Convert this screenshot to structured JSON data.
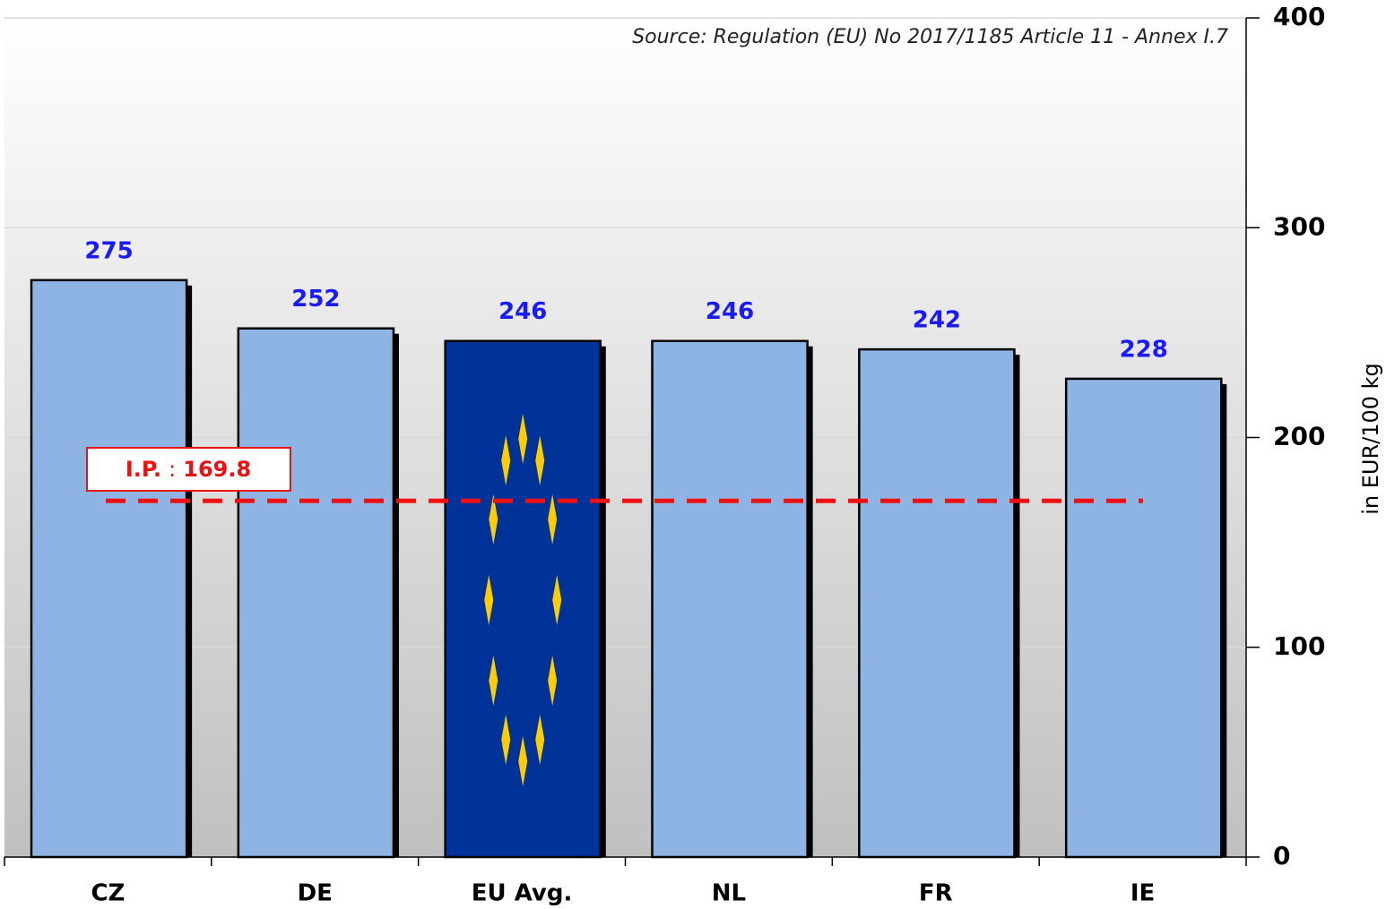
{
  "chart_data": {
    "type": "bar",
    "source": "Source: Regulation (EU) No 2017/1185 Article 11 - Annex I.7",
    "y_axis_label": "in EUR/100 kg",
    "categories": [
      "CZ",
      "DE",
      "EU Avg.",
      "NL",
      "FR",
      "IE"
    ],
    "values": [
      275,
      252,
      246,
      246,
      242,
      228
    ],
    "colors": [
      "#8eb4e3",
      "#8eb4e3",
      "#003399",
      "#8eb4e3",
      "#8eb4e3",
      "#8eb4e3"
    ],
    "value_label_color": "#1a1aff",
    "ylim": [
      0,
      400
    ],
    "yticks": [
      0,
      100,
      200,
      300,
      400
    ],
    "grid": true,
    "y_axis_side": "right",
    "reference_line": {
      "label": "I.P.",
      "separator": ":",
      "value": 169.8,
      "color": "#ee1111"
    }
  }
}
